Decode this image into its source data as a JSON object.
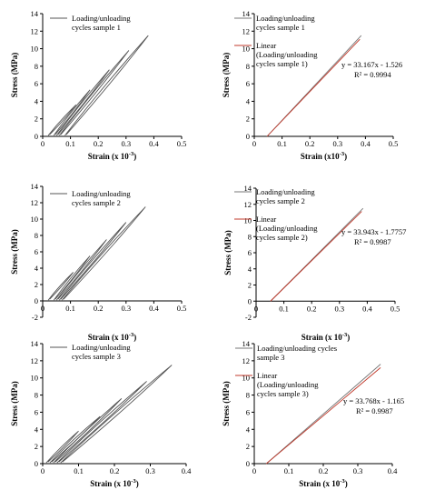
{
  "chart_data": [
    {
      "type": "line",
      "xlabel": "Strain (x 10",
      "xlabel_sup": "-3",
      "xlabel_end": ")",
      "ylabel": "Stress (MPa)",
      "xlim": [
        0,
        0.5
      ],
      "ylim": [
        0,
        14
      ],
      "xticks": [
        "0",
        "0.1",
        "0.2",
        "0.3",
        "0.4",
        "0.5"
      ],
      "yticks": [
        "0",
        "2",
        "4",
        "6",
        "8",
        "10",
        "12",
        "14"
      ],
      "legend": [
        "Loading/unloading",
        "cycles sample 1"
      ],
      "series": [
        {
          "name": "Loading/unloading cycles sample 1",
          "color": "#555555",
          "kind": "cycles",
          "peak": [
            0.38,
            11.5
          ],
          "cycles": [
            {
              "start": 0.02,
              "end": [
                0.12,
                3.6
              ],
              "width": 0.15
            },
            {
              "start": 0.04,
              "end": [
                0.17,
                5.3
              ],
              "width": 0.18
            },
            {
              "start": 0.05,
              "end": [
                0.24,
                7.6
              ],
              "width": 0.2
            },
            {
              "start": 0.06,
              "end": [
                0.31,
                9.8
              ],
              "width": 0.22
            },
            {
              "start": 0.08,
              "end": [
                0.38,
                11.5
              ],
              "width": 0.25
            }
          ]
        }
      ]
    },
    {
      "type": "line",
      "xlabel": "Strain (x10",
      "xlabel_sup": "-3",
      "xlabel_end": ")",
      "ylabel": "Stress (MPa)",
      "xlim": [
        0,
        0.5
      ],
      "ylim": [
        0,
        14
      ],
      "xticks": [
        "0",
        "0.1",
        "0.2",
        "0.3",
        "0.4",
        "0.5"
      ],
      "yticks": [
        "0",
        "2",
        "4",
        "6",
        "8",
        "10",
        "12",
        "14"
      ],
      "legend": [
        "Loading/unloading",
        "cycles sample 1"
      ],
      "legend2": [
        "Linear",
        "(Loading/unloading",
        "cycles sample 1)"
      ],
      "equation": "y = 33.167x - 1.526",
      "r2": "R² = 0.9994",
      "series": [
        {
          "name": "Loading/unloading cycles sample 1",
          "color": "#777777",
          "kind": "line",
          "x": [
            0.046,
            0.385
          ],
          "y": [
            0,
            11.5
          ]
        },
        {
          "name": "Linear (Loading/unloading cycles sample 1)",
          "color": "#c0392b",
          "kind": "line",
          "x": [
            0.046,
            0.38
          ],
          "y": [
            0,
            11.08
          ]
        }
      ]
    },
    {
      "type": "line",
      "xlabel": "Strain (x 10",
      "xlabel_sup": "-3",
      "xlabel_end": ")",
      "ylabel": "Stress (MPa)",
      "xlim": [
        0,
        0.5
      ],
      "ylim": [
        -2,
        14
      ],
      "xticks": [
        "0",
        "0.1",
        "0.2",
        "0.3",
        "0.4",
        "0.5"
      ],
      "yticks": [
        "-2",
        "0",
        "2",
        "4",
        "6",
        "8",
        "10",
        "12",
        "14"
      ],
      "legend": [
        "Loading/unloading",
        "cycles sample 2"
      ],
      "series": [
        {
          "name": "Loading/unloading cycles sample 2",
          "color": "#555555",
          "kind": "cycles",
          "peak": [
            0.37,
            11.5
          ],
          "cycles": [
            {
              "start": 0.02,
              "end": [
                0.11,
                3.5
              ],
              "width": 0.15
            },
            {
              "start": 0.04,
              "end": [
                0.17,
                5.5
              ],
              "width": 0.18
            },
            {
              "start": 0.05,
              "end": [
                0.23,
                7.5
              ],
              "width": 0.2
            },
            {
              "start": 0.06,
              "end": [
                0.3,
                9.6
              ],
              "width": 0.22
            },
            {
              "start": 0.07,
              "end": [
                0.37,
                11.5
              ],
              "width": 0.25
            }
          ]
        }
      ]
    },
    {
      "type": "line",
      "xlabel": "Strain (x 10",
      "xlabel_sup": "-3",
      "xlabel_end": ")",
      "ylabel": "Stress (MPa)",
      "xlim": [
        0,
        0.5
      ],
      "ylim": [
        -2,
        14
      ],
      "xticks": [
        "0",
        "0.1",
        "0.2",
        "0.3",
        "0.4",
        "0.5"
      ],
      "yticks": [
        "-2",
        "0",
        "2",
        "4",
        "6",
        "8",
        "10",
        "12",
        "14"
      ],
      "legend": [
        "Loading/unloading",
        "cycles sample 2"
      ],
      "legend2": [
        "Linear",
        "(Loading/unloading",
        "cycles sample 2)"
      ],
      "equation": "y = 33.943x - 1.7757",
      "r2": "R² = 0.9987",
      "series": [
        {
          "name": "Loading/unloading cycles sample 2",
          "color": "#777777",
          "kind": "line",
          "x": [
            0.052,
            0.385
          ],
          "y": [
            0,
            11.5
          ]
        },
        {
          "name": "Linear (Loading/unloading cycles sample 2)",
          "color": "#c0392b",
          "kind": "line",
          "x": [
            0.052,
            0.38
          ],
          "y": [
            0,
            11.12
          ]
        }
      ]
    },
    {
      "type": "line",
      "xlabel": "Strain (x 10",
      "xlabel_sup": "-3",
      "xlabel_end": ")",
      "ylabel": "Stress (MPa)",
      "xlim": [
        0,
        0.4
      ],
      "ylim": [
        0,
        14
      ],
      "xticks": [
        "0",
        "0.1",
        "0.2",
        "0.3",
        "0.4"
      ],
      "yticks": [
        "0",
        "2",
        "4",
        "6",
        "8",
        "10",
        "12",
        "14"
      ],
      "legend": [
        "Loading/unloading",
        "cycles sample 3"
      ],
      "series": [
        {
          "name": "Loading/unloading cycles sample 3",
          "color": "#555555",
          "kind": "cycles",
          "peak": [
            0.36,
            11.5
          ],
          "cycles": [
            {
              "start": 0.01,
              "end": [
                0.1,
                3.8
              ],
              "width": 0.15
            },
            {
              "start": 0.02,
              "end": [
                0.16,
                5.5
              ],
              "width": 0.18
            },
            {
              "start": 0.03,
              "end": [
                0.22,
                7.6
              ],
              "width": 0.2
            },
            {
              "start": 0.04,
              "end": [
                0.29,
                9.6
              ],
              "width": 0.22
            },
            {
              "start": 0.05,
              "end": [
                0.36,
                11.5
              ],
              "width": 0.25
            }
          ]
        }
      ]
    },
    {
      "type": "line",
      "xlabel": "Strain (x 10",
      "xlabel_sup": "-3",
      "xlabel_end": ")",
      "ylabel": "Stress (MPa)",
      "xlim": [
        0,
        0.4
      ],
      "ylim": [
        0,
        14
      ],
      "xticks": [
        "0",
        "0.1",
        "0.2",
        "0.3",
        "0.4"
      ],
      "yticks": [
        "0",
        "2",
        "4",
        "6",
        "8",
        "10",
        "12",
        "14"
      ],
      "legend": [
        "Loading/unloading cycles",
        "sample 3"
      ],
      "legend2": [
        "Linear",
        "(Loading/unloading",
        "cycles sample 3)"
      ],
      "equation": "y = 33.768x - 1.165",
      "r2": "R² = 0.9987",
      "series": [
        {
          "name": "Loading/unloading cycles sample 3",
          "color": "#777777",
          "kind": "line",
          "x": [
            0.035,
            0.366
          ],
          "y": [
            0,
            11.6
          ]
        },
        {
          "name": "Linear (Loading/unloading cycles sample 3)",
          "color": "#c0392b",
          "kind": "line",
          "x": [
            0.035,
            0.366
          ],
          "y": [
            0,
            11.2
          ]
        }
      ]
    }
  ]
}
